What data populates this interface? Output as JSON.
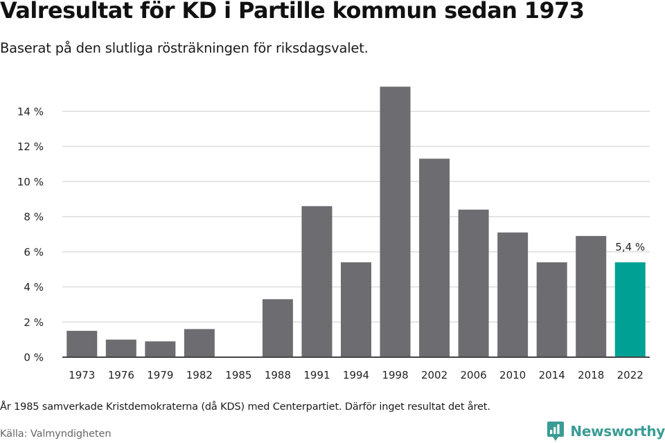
{
  "title": "Valresultat för KD i Partille kommun sedan 1973",
  "subtitle": "Baserat på den slutliga rösträkningen för riksdagsvalet.",
  "footnote": "År 1985 samverkade Kristdemokraterna (då KDS) med Centerpartiet. Därför inget resultat det året.",
  "source": "Källa: Valmyndigheten",
  "brand": {
    "name": "Newsworthy",
    "logo_icon": "newsworthy-logo-icon",
    "color": "#3a9c94"
  },
  "chart_data": {
    "type": "bar",
    "categories": [
      "1973",
      "1976",
      "1979",
      "1982",
      "1985",
      "1988",
      "1991",
      "1994",
      "1998",
      "2002",
      "2006",
      "2010",
      "2014",
      "2018",
      "2022"
    ],
    "values": [
      1.5,
      1.0,
      0.9,
      1.6,
      null,
      3.3,
      8.6,
      5.4,
      15.4,
      11.3,
      8.4,
      7.1,
      5.4,
      6.9,
      5.4
    ],
    "ylim": [
      0,
      16
    ],
    "yticks": [
      0,
      2,
      4,
      6,
      8,
      10,
      12,
      14
    ],
    "ytick_labels": [
      "0 %",
      "2 %",
      "4 %",
      "6 %",
      "8 %",
      "10 %",
      "12 %",
      "14 %"
    ],
    "grid": true,
    "colors": {
      "bar": "#6d6c71",
      "highlight": "#00a195",
      "grid": "#dcdcdc",
      "axis": "#444444"
    },
    "highlight_index": 14,
    "annotations": [
      {
        "index": 14,
        "label": "5,4 %"
      }
    ]
  }
}
